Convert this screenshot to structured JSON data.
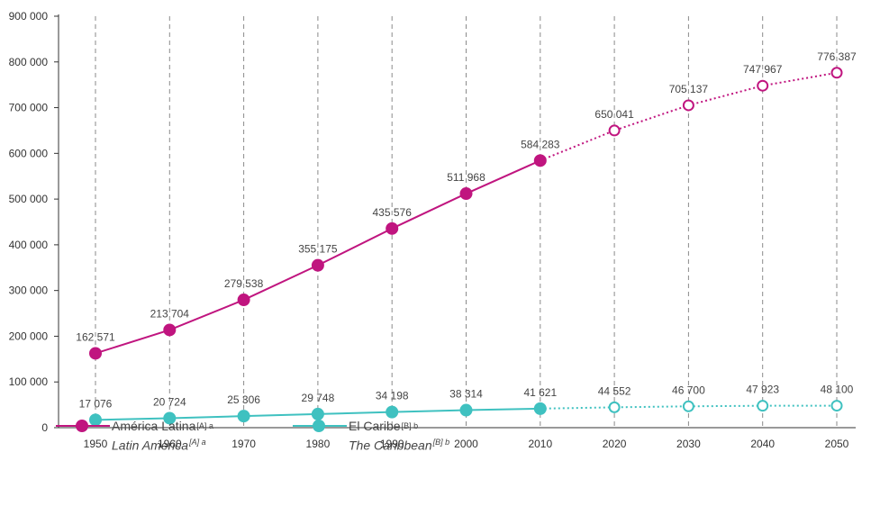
{
  "chart_data": {
    "type": "line",
    "title": "",
    "xlabel": "",
    "ylabel": "",
    "categories": [
      "1950",
      "1960",
      "1970",
      "1980",
      "1990",
      "2000",
      "2010",
      "2020",
      "2030",
      "2040",
      "2050"
    ],
    "ylim": [
      0,
      900000
    ],
    "yticks": [
      "0",
      "100 000",
      "200 000",
      "300 000",
      "400 000",
      "500 000",
      "600 000",
      "700 000",
      "800 000",
      "900 000"
    ],
    "grid": "vertical-dashed",
    "projection_start_index": 6,
    "series": [
      {
        "name": "América Latina",
        "name_en": "Latin America",
        "sup_es": "[A] a",
        "sup_en": "[A] a",
        "color": "#c0157f",
        "values": [
          162571,
          213704,
          279538,
          355175,
          435576,
          511968,
          584283,
          650041,
          705137,
          747967,
          776387
        ],
        "labels": [
          "162 571",
          "213 704",
          "279 538",
          "355 175",
          "435 576",
          "511 968",
          "584 283",
          "650 041",
          "705 137",
          "747 967",
          "776 387"
        ]
      },
      {
        "name": "El Caribe",
        "name_en": "The Caribbean",
        "sup_es": "[B] b",
        "sup_en": "[B] b",
        "color": "#3fc1c0",
        "values": [
          17076,
          20724,
          25306,
          29748,
          34198,
          38314,
          41621,
          44552,
          46700,
          47923,
          48100
        ],
        "labels": [
          "17 076",
          "20 724",
          "25 306",
          "29 748",
          "34 198",
          "38 314",
          "41 621",
          "44 552",
          "46 700",
          "47 923",
          "48 100"
        ]
      }
    ]
  }
}
